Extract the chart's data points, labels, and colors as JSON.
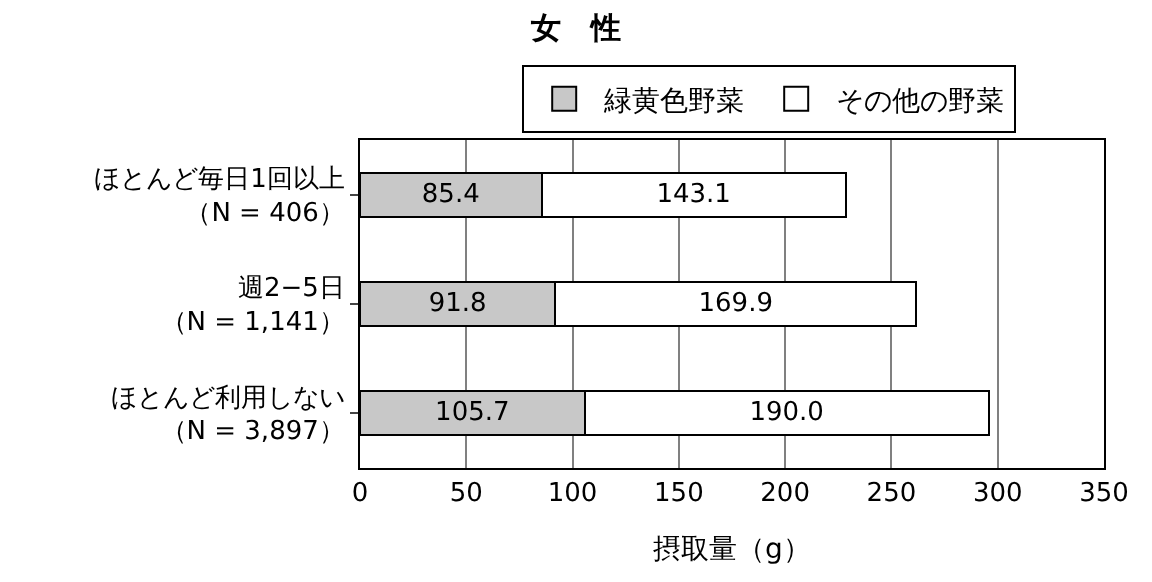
{
  "chart_data": {
    "type": "bar",
    "orientation": "horizontal",
    "stacked": true,
    "title": "女　性",
    "xlabel": "摂取量（g）",
    "categories": [
      "ほとんど毎日1回以上（N = 406）",
      "週2−5日（N = 1,141）",
      "ほとんど利用しない（N = 3,897）"
    ],
    "series": [
      {
        "name": "緑黄色野菜",
        "color": "#c8c8c8",
        "values": [
          85.4,
          91.8,
          105.7
        ],
        "value_labels": [
          "85.4",
          "91.8",
          "105.7"
        ]
      },
      {
        "name": "その他の野菜",
        "color": "#ffffff",
        "values": [
          143.1,
          169.9,
          190.0
        ],
        "value_labels": [
          "143.1",
          "169.9",
          "190.0"
        ]
      }
    ],
    "xlim": [
      0,
      350
    ],
    "xticks": [
      0,
      50,
      100,
      150,
      200,
      250,
      300,
      350
    ],
    "grid": "x",
    "legend": "top"
  }
}
